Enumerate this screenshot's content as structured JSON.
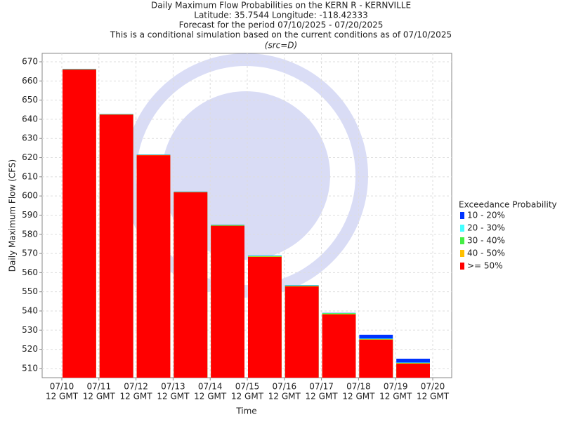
{
  "chart_data": {
    "type": "bar",
    "title_lines": [
      "Daily Maximum Flow Probabilities on the KERN R - KERNVILLE",
      "Latitude: 35.7544 Longitude: -118.42333",
      "Forecast for the period 07/10/2025 - 07/20/2025",
      "This is a conditional simulation based on the current conditions as of 07/10/2025"
    ],
    "subtitle": "(src=D)",
    "y_label": "Daily Maximum Flow (CFS)",
    "x_label": "Time",
    "legend_title": "Exceedance Probability",
    "xticks": [
      [
        "07/10",
        "12 GMT"
      ],
      [
        "07/11",
        "12 GMT"
      ],
      [
        "07/12",
        "12 GMT"
      ],
      [
        "07/13",
        "12 GMT"
      ],
      [
        "07/14",
        "12 GMT"
      ],
      [
        "07/15",
        "12 GMT"
      ],
      [
        "07/16",
        "12 GMT"
      ],
      [
        "07/17",
        "12 GMT"
      ],
      [
        "07/18",
        "12 GMT"
      ],
      [
        "07/19",
        "12 GMT"
      ],
      [
        "07/20",
        "12 GMT"
      ]
    ],
    "ylim": [
      505.2,
      674.4
    ],
    "yticks": [
      510,
      520,
      530,
      540,
      550,
      560,
      570,
      580,
      590,
      600,
      610,
      620,
      630,
      640,
      650,
      660,
      670
    ],
    "grid": true,
    "series": [
      {
        "name": "10 - 20%",
        "color": "#0033ff",
        "values": [
          666.3,
          642.8,
          621.6,
          602.3,
          585.0,
          569.0,
          553.5,
          539.0,
          527.6,
          515.1
        ]
      },
      {
        "name": "20 - 30%",
        "color": "#44ffff",
        "values": [
          666.2,
          642.7,
          621.5,
          602.2,
          584.9,
          568.9,
          553.4,
          538.9,
          525.6,
          513.1
        ]
      },
      {
        "name": "30 - 40%",
        "color": "#44ee44",
        "values": [
          666.1,
          642.6,
          621.4,
          602.1,
          584.8,
          568.6,
          553.2,
          538.8,
          525.4,
          512.9
        ]
      },
      {
        "name": "40 - 50%",
        "color": "#ffc000",
        "values": [
          666.0,
          642.5,
          621.3,
          602.0,
          584.5,
          568.4,
          553.0,
          538.4,
          525.2,
          512.7
        ]
      },
      {
        "name": ">= 50%",
        "color": "#ff0000",
        "values": [
          665.9,
          642.4,
          621.2,
          601.9,
          584.4,
          568.2,
          552.8,
          538.2,
          525.0,
          512.5
        ]
      }
    ]
  }
}
